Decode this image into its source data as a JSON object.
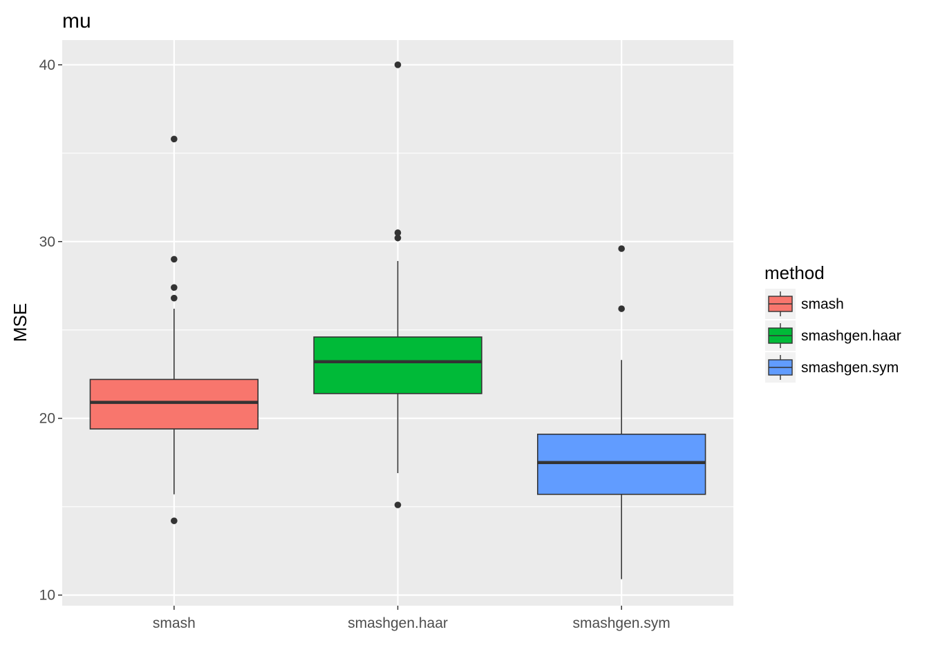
{
  "chart_data": {
    "type": "box",
    "title": "mu",
    "xlabel": "",
    "ylabel": "MSE",
    "ylim": [
      9.4,
      41.4
    ],
    "yticks": [
      10,
      20,
      30,
      40
    ],
    "grid": true,
    "legend": {
      "title": "method",
      "position": "right"
    },
    "categories": [
      "smash",
      "smashgen.haar",
      "smashgen.sym"
    ],
    "colors": [
      "#F8766D",
      "#00BA38",
      "#619CFF"
    ],
    "boxes": [
      {
        "name": "smash",
        "q1": 19.4,
        "median": 20.9,
        "q3": 22.2,
        "whisker_low": 15.7,
        "whisker_high": 26.2,
        "outliers": [
          14.2,
          26.8,
          27.4,
          29.0,
          35.8
        ]
      },
      {
        "name": "smashgen.haar",
        "q1": 21.4,
        "median": 23.2,
        "q3": 24.6,
        "whisker_low": 16.9,
        "whisker_high": 28.9,
        "outliers": [
          15.1,
          30.2,
          30.5,
          40.0
        ]
      },
      {
        "name": "smashgen.sym",
        "q1": 15.7,
        "median": 17.5,
        "q3": 19.1,
        "whisker_low": 10.9,
        "whisker_high": 23.3,
        "outliers": [
          26.2,
          29.6
        ]
      }
    ]
  }
}
